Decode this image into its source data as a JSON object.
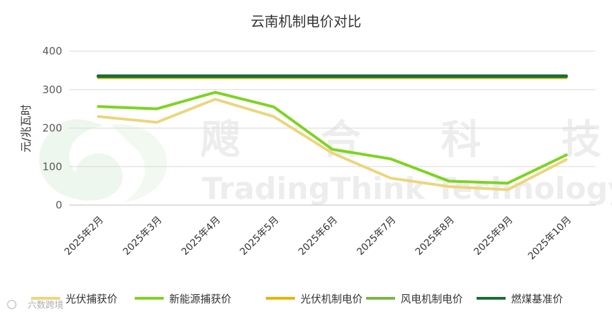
{
  "chart_data": {
    "type": "line",
    "title": "云南机制电价对比",
    "ylabel": "元/兆瓦时",
    "xlabel": "",
    "ylim": [
      0,
      400
    ],
    "yticks": [
      0,
      100,
      200,
      300,
      400
    ],
    "grid": true,
    "legend_position": "bottom",
    "categories": [
      "2025年2月",
      "2025年3月",
      "2025年4月",
      "2025年5月",
      "2025年6月",
      "2025年7月",
      "2025年8月",
      "2025年9月",
      "2025年10月"
    ],
    "series": [
      {
        "name": "光伏捕获价",
        "color": "#EBD67E",
        "values": [
          230,
          215,
          275,
          230,
          135,
          70,
          48,
          40,
          118
        ]
      },
      {
        "name": "新能源捕获价",
        "color": "#7ED321",
        "values": [
          256,
          250,
          293,
          255,
          145,
          120,
          62,
          57,
          130
        ]
      },
      {
        "name": "光伏机制电价",
        "color": "#E8B400",
        "values": [
          331,
          331,
          331,
          331,
          331,
          331,
          331,
          331,
          331
        ]
      },
      {
        "name": "风电机制电价",
        "color": "#7AB648",
        "values": [
          333,
          333,
          333,
          333,
          333,
          333,
          333,
          333,
          333
        ]
      },
      {
        "name": "燃煤基准价",
        "color": "#1E6B35",
        "values": [
          335,
          335,
          335,
          335,
          335,
          335,
          335,
          335,
          335
        ]
      }
    ]
  },
  "watermark": {
    "chinese": "飕 合 科 技",
    "english": "TradingThink Technology",
    "source": "六数跨境"
  }
}
